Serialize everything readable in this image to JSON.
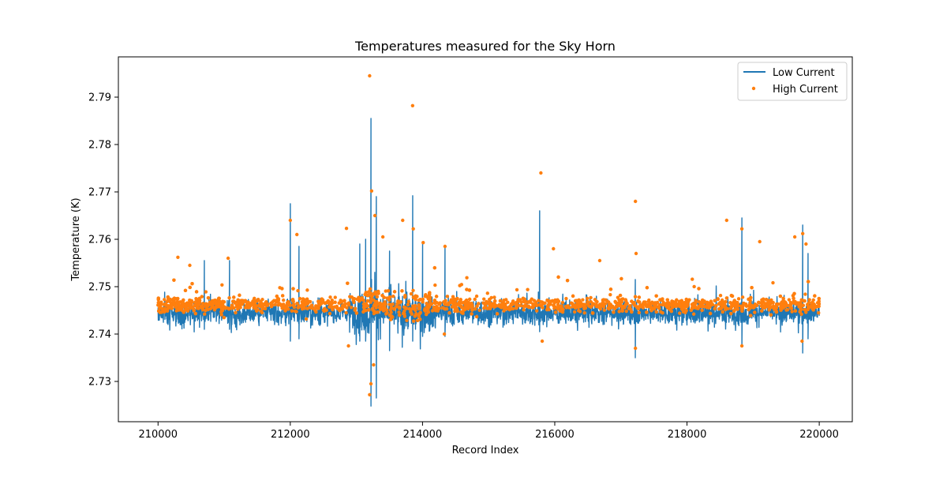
{
  "chart_data": {
    "type": "line",
    "title": "Temperatures measured for the Sky Horn",
    "xlabel": "Record Index",
    "ylabel": "Temperature (K)",
    "xlim": [
      209400,
      220500
    ],
    "ylim": [
      2.7215,
      2.7985
    ],
    "xticks": [
      210000,
      212000,
      214000,
      216000,
      218000,
      220000
    ],
    "yticks": [
      2.73,
      2.74,
      2.75,
      2.76,
      2.77,
      2.78,
      2.79
    ],
    "legend": {
      "placement": "upper-right",
      "entries": [
        "Low Current",
        "High Current"
      ]
    },
    "grid": false,
    "x_range": [
      210000,
      220000
    ],
    "series": [
      {
        "name": "Low Current",
        "type": "line",
        "color": "#1f77b4",
        "baseline_mean": 2.7445,
        "baseline_spread": 0.003,
        "spikes": [
          {
            "x": 213220,
            "low": 2.7248,
            "high": 2.7855
          },
          {
            "x": 213300,
            "low": 2.7265,
            "high": 2.769
          },
          {
            "x": 213850,
            "low": 2.7385,
            "high": 2.7692
          },
          {
            "x": 212000,
            "low": 2.7385,
            "high": 2.7675
          },
          {
            "x": 215770,
            "low": 2.7405,
            "high": 2.766
          },
          {
            "x": 218830,
            "low": 2.7375,
            "high": 2.7645
          },
          {
            "x": 219750,
            "low": 2.736,
            "high": 2.763
          },
          {
            "x": 212130,
            "low": 2.739,
            "high": 2.7585
          },
          {
            "x": 214340,
            "low": 2.7395,
            "high": 2.7585
          },
          {
            "x": 213140,
            "low": 2.7385,
            "high": 2.76
          },
          {
            "x": 217220,
            "low": 2.735,
            "high": 2.7515
          },
          {
            "x": 213050,
            "low": 2.7385,
            "high": 2.759
          },
          {
            "x": 213500,
            "low": 2.7365,
            "high": 2.7575
          },
          {
            "x": 210700,
            "low": 2.741,
            "high": 2.7555
          },
          {
            "x": 211080,
            "low": 2.741,
            "high": 2.7555
          },
          {
            "x": 214000,
            "low": 2.7395,
            "high": 2.759
          },
          {
            "x": 219830,
            "low": 2.739,
            "high": 2.757
          }
        ]
      },
      {
        "name": "High Current",
        "type": "scatter",
        "color": "#ff7f0e",
        "baseline_mean": 2.7462,
        "baseline_spread": 0.0018,
        "outliers": [
          {
            "x": 213200,
            "y": 2.7945
          },
          {
            "x": 213850,
            "y": 2.7882
          },
          {
            "x": 215790,
            "y": 2.774
          },
          {
            "x": 217220,
            "y": 2.768
          },
          {
            "x": 213230,
            "y": 2.7702
          },
          {
            "x": 213280,
            "y": 2.765
          },
          {
            "x": 213700,
            "y": 2.764
          },
          {
            "x": 218600,
            "y": 2.764
          },
          {
            "x": 212000,
            "y": 2.764
          },
          {
            "x": 212850,
            "y": 2.7623
          },
          {
            "x": 218830,
            "y": 2.7622
          },
          {
            "x": 219750,
            "y": 2.7612
          },
          {
            "x": 213860,
            "y": 2.7622
          },
          {
            "x": 212100,
            "y": 2.761
          },
          {
            "x": 213400,
            "y": 2.7605
          },
          {
            "x": 219630,
            "y": 2.7605
          },
          {
            "x": 219100,
            "y": 2.7595
          },
          {
            "x": 219800,
            "y": 2.759
          },
          {
            "x": 214010,
            "y": 2.7593
          },
          {
            "x": 214340,
            "y": 2.7585
          },
          {
            "x": 215980,
            "y": 2.758
          },
          {
            "x": 210480,
            "y": 2.7545
          },
          {
            "x": 210300,
            "y": 2.7562
          },
          {
            "x": 211060,
            "y": 2.756
          },
          {
            "x": 216680,
            "y": 2.7555
          },
          {
            "x": 217230,
            "y": 2.757
          },
          {
            "x": 213200,
            "y": 2.7272
          },
          {
            "x": 213220,
            "y": 2.7295
          },
          {
            "x": 213260,
            "y": 2.7335
          },
          {
            "x": 212880,
            "y": 2.7375
          },
          {
            "x": 217220,
            "y": 2.737
          },
          {
            "x": 218830,
            "y": 2.7375
          },
          {
            "x": 219740,
            "y": 2.7385
          },
          {
            "x": 215810,
            "y": 2.7385
          },
          {
            "x": 214330,
            "y": 2.74
          }
        ]
      }
    ]
  }
}
